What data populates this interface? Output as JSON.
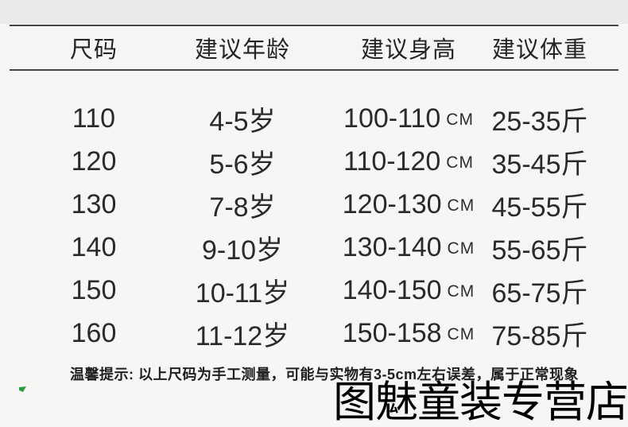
{
  "header": {
    "columns": [
      "尺码",
      "建议年龄",
      "建议身高",
      "建议体重"
    ]
  },
  "rows": [
    {
      "size": "110",
      "age": "4-5岁",
      "height_range": "100-110",
      "height_unit": "CM",
      "weight": "25-35斤"
    },
    {
      "size": "120",
      "age": "5-6岁",
      "height_range": "110-120",
      "height_unit": "CM",
      "weight": "35-45斤"
    },
    {
      "size": "130",
      "age": "7-8岁",
      "height_range": "120-130",
      "height_unit": "CM",
      "weight": "45-55斤"
    },
    {
      "size": "140",
      "age": "9-10岁",
      "height_range": "130-140",
      "height_unit": "CM",
      "weight": "55-65斤"
    },
    {
      "size": "150",
      "age": "10-11岁",
      "height_range": "140-150",
      "height_unit": "CM",
      "weight": "65-75斤"
    },
    {
      "size": "160",
      "age": "11-12岁",
      "height_range": "150-158",
      "height_unit": "CM",
      "weight": "75-85斤"
    }
  ],
  "note": {
    "text": "温馨提示: 以上尺码为手工测量，可能与实物有3-5cm左右误差，属于正常现象"
  },
  "watermark": {
    "text": "图魅童装专营店"
  },
  "colors": {
    "rule_line": "#454545",
    "body_text": "#2a2a2a",
    "note_text": "#1f1f1f",
    "watermark": "#000000",
    "green_mark": "#2e9b3d",
    "background": "#f7f6f4",
    "top_strip": "#ebeae8"
  }
}
